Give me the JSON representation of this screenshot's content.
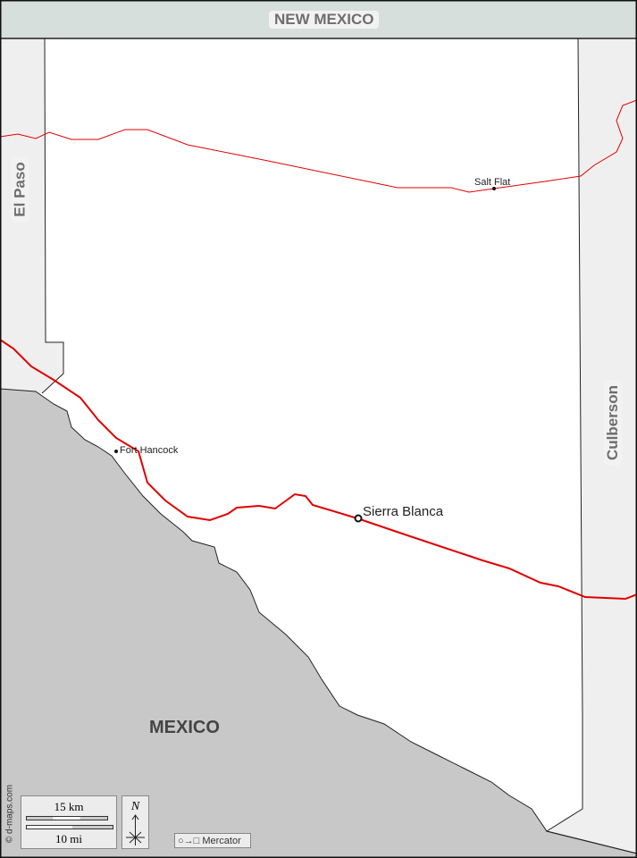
{
  "regions": {
    "north": "NEW MEXICO",
    "west": "El Paso",
    "east": "Culberson",
    "south": "MEXICO"
  },
  "places": [
    {
      "name": "Salt Flat",
      "type": "town"
    },
    {
      "name": "Fort Hancock",
      "type": "town"
    },
    {
      "name": "Sierra Blanca",
      "type": "county-seat"
    }
  ],
  "scale": {
    "km": "15 km",
    "mi": "10 mi"
  },
  "north_arrow": "N",
  "projection": "○→□ Mercator",
  "credit": "© d-maps.com",
  "colors": {
    "county": "#ffffff",
    "neighbor_county": "#efefef",
    "new_mexico": "#d7dfdd",
    "mexico": "#c8c8c8",
    "roads": "#e00000"
  }
}
